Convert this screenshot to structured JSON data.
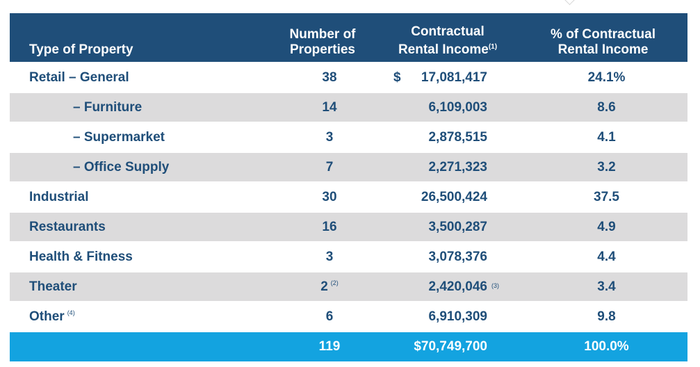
{
  "header": {
    "type": "Type of Property",
    "count_line1": "Number of",
    "count_line2": "Properties",
    "income_line1": "Contractual",
    "income_line2": "Rental Income",
    "income_note": "(1)",
    "pct_line1": "% of Contractual",
    "pct_line2": "Rental Income"
  },
  "rows": [
    {
      "type": "Retail – General",
      "count": "38",
      "currency": "$",
      "income": "17,081,417",
      "pct": "24.1%"
    },
    {
      "type": "– Furniture",
      "count": "14",
      "income": "6,109,003",
      "pct": "8.6"
    },
    {
      "type": "– Supermarket",
      "count": "3",
      "income": "2,878,515",
      "pct": "4.1"
    },
    {
      "type": "– Office Supply",
      "count": "7",
      "income": "2,271,323",
      "pct": "3.2"
    },
    {
      "type": "Industrial",
      "count": "30",
      "income": "26,500,424",
      "pct": "37.5"
    },
    {
      "type": "Restaurants",
      "count": "16",
      "income": "3,500,287",
      "pct": "4.9"
    },
    {
      "type": "Health & Fitness",
      "count": "3",
      "income": "3,078,376",
      "pct": "4.4"
    },
    {
      "type": "Theater",
      "count": "2",
      "count_note": "(2)",
      "income": "2,420,046",
      "income_note": "(3)",
      "pct": "3.4"
    },
    {
      "type": "Other",
      "type_note": "(4)",
      "count": "6",
      "income": "6,910,309",
      "pct": "9.8"
    }
  ],
  "total": {
    "count": "119",
    "income": "$70,749,700",
    "pct": "100.0%"
  },
  "colors": {
    "header": "#1f4e79",
    "text": "#1f4e79",
    "shade": "#dcdbdc",
    "total": "#13a3e0"
  }
}
